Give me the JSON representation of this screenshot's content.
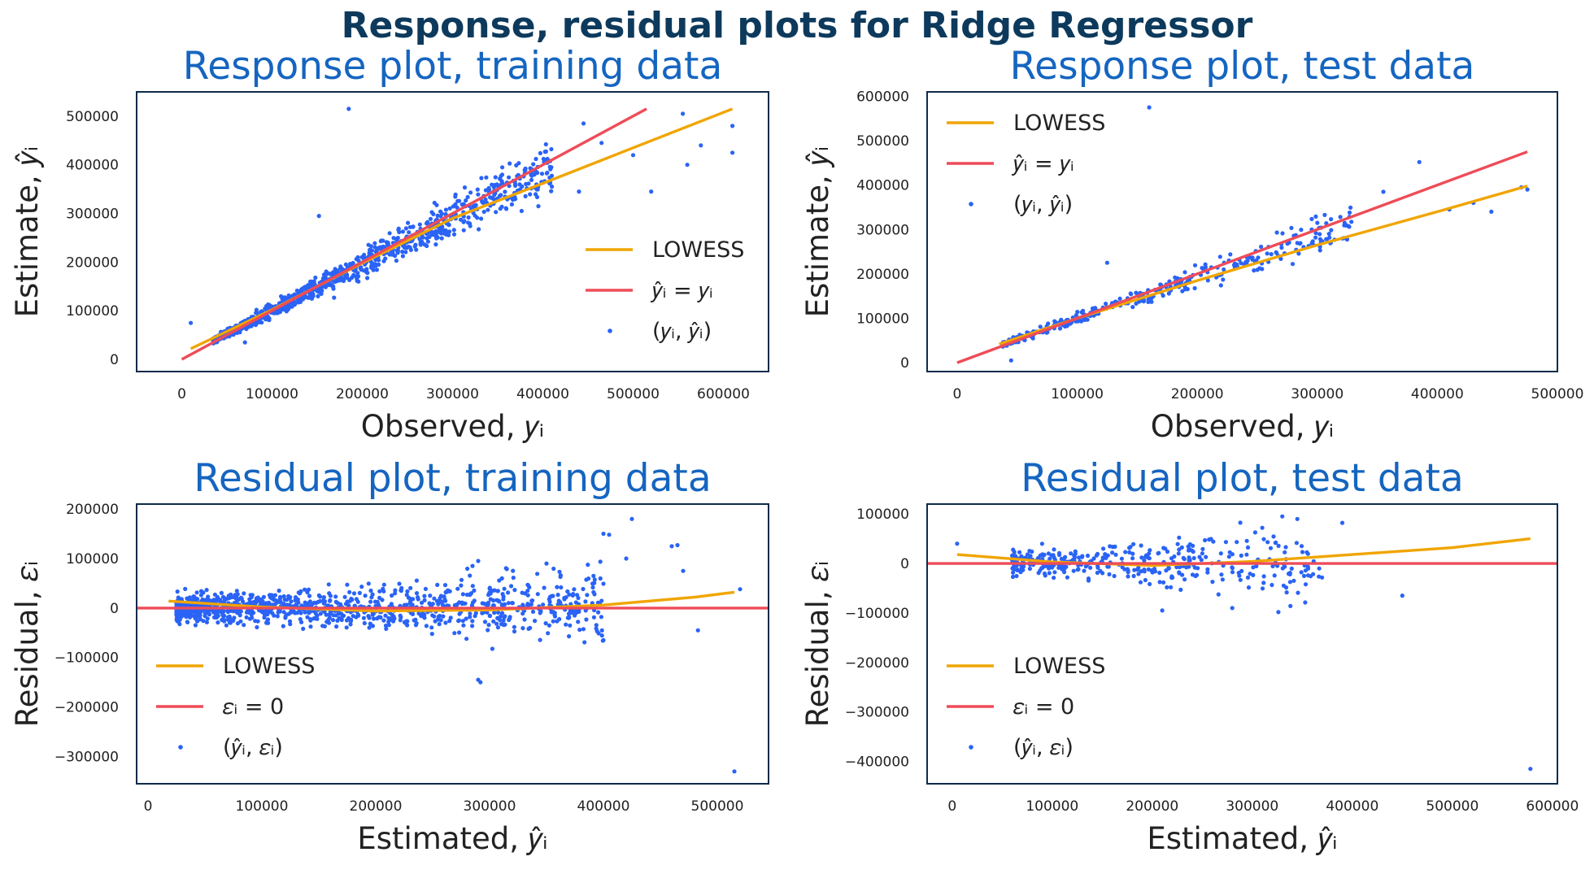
{
  "figure": {
    "title": "Response, residual plots for Ridge Regressor",
    "colors": {
      "frame": "#0d2b4a",
      "title": "#0d3a5c",
      "subtitle": "#1565c0",
      "points": "#2a63f5",
      "lowess": "#f0a500",
      "identity": "#ee4c58",
      "text": "#222222"
    }
  },
  "chart_data": [
    {
      "type": "scatter",
      "title": "Response plot, training data",
      "xlabel": "Observed, 𝑦ᵢ",
      "ylabel": "Estimate, 𝑦̂ᵢ",
      "xlim": [
        -50000,
        650000
      ],
      "ylim": [
        -25000,
        550000
      ],
      "xticks": [
        0,
        100000,
        200000,
        300000,
        400000,
        500000,
        600000
      ],
      "yticks": [
        0,
        100000,
        200000,
        300000,
        400000,
        500000
      ],
      "legend": {
        "placement": "lower-right",
        "entries": [
          "LOWESS",
          "𝑦̂ᵢ = 𝑦ᵢ",
          "(𝑦ᵢ, 𝑦̂ᵢ)"
        ]
      },
      "series": [
        {
          "kind": "line",
          "role": "lowess",
          "x": [
            10000,
            100000,
            200000,
            300000,
            400000,
            500000,
            610000
          ],
          "y": [
            22000,
            102000,
            198000,
            290000,
            362000,
            435000,
            515000
          ]
        },
        {
          "kind": "line",
          "role": "identity",
          "x": [
            0,
            515000
          ],
          "y": [
            0,
            515000
          ]
        },
        {
          "kind": "scatter",
          "role": "points",
          "cluster": {
            "n": 1100,
            "x_range": [
              35000,
              410000
            ],
            "slope": 0.96,
            "intercept": 5000,
            "noise_fraction": 0.11
          },
          "extra_points": [
            [
              185000,
              515000
            ],
            [
              555000,
              505000
            ],
            [
              610000,
              480000
            ],
            [
              575000,
              440000
            ],
            [
              500000,
              420000
            ],
            [
              560000,
              400000
            ],
            [
              610000,
              425000
            ],
            [
              445000,
              485000
            ],
            [
              465000,
              445000
            ],
            [
              152000,
              295000
            ],
            [
              520000,
              345000
            ],
            [
              440000,
              345000
            ],
            [
              395000,
              315000
            ],
            [
              10000,
              75000
            ],
            [
              70000,
              35000
            ]
          ]
        }
      ]
    },
    {
      "type": "scatter",
      "title": "Response plot, test data",
      "xlabel": "Observed, 𝑦ᵢ",
      "ylabel": "Estimate, 𝑦̂ᵢ",
      "xlim": [
        -25000,
        500000
      ],
      "ylim": [
        -20000,
        610000
      ],
      "xticks": [
        0,
        100000,
        200000,
        300000,
        400000,
        500000
      ],
      "yticks": [
        0,
        100000,
        200000,
        300000,
        400000,
        500000,
        600000
      ],
      "legend": {
        "placement": "upper-left",
        "entries": [
          "LOWESS",
          "𝑦̂ᵢ = 𝑦ᵢ",
          "(𝑦ᵢ, 𝑦̂ᵢ)"
        ]
      },
      "series": [
        {
          "kind": "line",
          "role": "lowess",
          "x": [
            35000,
            100000,
            200000,
            300000,
            400000,
            475000
          ],
          "y": [
            42000,
            100000,
            185000,
            265000,
            340000,
            398000
          ]
        },
        {
          "kind": "line",
          "role": "identity",
          "x": [
            0,
            475000
          ],
          "y": [
            0,
            475000
          ]
        },
        {
          "kind": "scatter",
          "role": "points",
          "cluster": {
            "n": 380,
            "x_range": [
              38000,
              330000
            ],
            "slope": 0.93,
            "intercept": 6000,
            "noise_fraction": 0.1
          },
          "extra_points": [
            [
              160000,
              575000
            ],
            [
              385000,
              452000
            ],
            [
              475000,
              390000
            ],
            [
              470000,
              395000
            ],
            [
              355000,
              385000
            ],
            [
              430000,
              360000
            ],
            [
              410000,
              345000
            ],
            [
              445000,
              340000
            ],
            [
              300000,
              315000
            ],
            [
              45000,
              5000
            ],
            [
              125000,
              225000
            ]
          ]
        }
      ]
    },
    {
      "type": "scatter",
      "title": "Residual plot, training data",
      "xlabel": "Estimated, 𝑦̂ᵢ",
      "ylabel": "Residual, 𝜀ᵢ",
      "xlim": [
        -10000,
        545000
      ],
      "ylim": [
        -355000,
        210000
      ],
      "xticks": [
        0,
        100000,
        200000,
        300000,
        400000,
        500000
      ],
      "yticks": [
        200000,
        100000,
        0,
        -100000,
        -200000,
        -300000
      ],
      "legend": {
        "placement": "lower-left",
        "entries": [
          "LOWESS",
          "𝜀ᵢ = 0",
          "(𝑦̂ᵢ, 𝜀ᵢ)"
        ]
      },
      "series": [
        {
          "kind": "line",
          "role": "lowess",
          "x": [
            18000,
            100000,
            200000,
            300000,
            400000,
            480000,
            515000
          ],
          "y": [
            14000,
            2000,
            -6000,
            -4000,
            6000,
            22000,
            32000
          ]
        },
        {
          "kind": "line",
          "role": "identity",
          "x": [
            -10000,
            545000
          ],
          "y": [
            0,
            0
          ]
        },
        {
          "kind": "scatter",
          "role": "points",
          "cluster": {
            "n": 1100,
            "x_range": [
              25000,
              400000
            ],
            "center": 0,
            "spread": 22000,
            "spread_growth": 0.12
          },
          "extra_points": [
            [
              515000,
              -330000
            ],
            [
              290000,
              -145000
            ],
            [
              292000,
              -150000
            ],
            [
              425000,
              180000
            ],
            [
              400000,
              150000
            ],
            [
              405000,
              148000
            ],
            [
              460000,
              125000
            ],
            [
              465000,
              127000
            ],
            [
              420000,
              100000
            ],
            [
              470000,
              75000
            ],
            [
              520000,
              38000
            ],
            [
              483000,
              -45000
            ],
            [
              350000,
              90000
            ],
            [
              400000,
              -65000
            ],
            [
              290000,
              95000
            ],
            [
              285000,
              85000
            ]
          ]
        }
      ]
    },
    {
      "type": "scatter",
      "title": "Residual plot, test data",
      "xlabel": "Estimated, 𝑦̂ᵢ",
      "ylabel": "Residual, 𝜀ᵢ",
      "xlim": [
        -25000,
        605000
      ],
      "ylim": [
        -445000,
        120000
      ],
      "xticks": [
        0,
        100000,
        200000,
        300000,
        400000,
        500000,
        600000
      ],
      "yticks": [
        100000,
        0,
        -100000,
        -200000,
        -300000,
        -400000
      ],
      "legend": {
        "placement": "lower-left",
        "entries": [
          "LOWESS",
          "𝜀ᵢ = 0",
          "(𝑦̂ᵢ, 𝜀ᵢ)"
        ]
      },
      "series": [
        {
          "kind": "line",
          "role": "lowess",
          "x": [
            5000,
            100000,
            200000,
            300000,
            400000,
            500000,
            578000
          ],
          "y": [
            18000,
            3000,
            -4000,
            4000,
            18000,
            32000,
            50000
          ]
        },
        {
          "kind": "line",
          "role": "identity",
          "x": [
            -25000,
            605000
          ],
          "y": [
            0,
            0
          ]
        },
        {
          "kind": "scatter",
          "role": "points",
          "cluster": {
            "n": 380,
            "x_range": [
              60000,
              370000
            ],
            "center": 0,
            "spread": 18000,
            "spread_growth": 0.2
          },
          "extra_points": [
            [
              578000,
              -415000
            ],
            [
              450000,
              -65000
            ],
            [
              280000,
              -90000
            ],
            [
              5000,
              40000
            ],
            [
              330000,
              95000
            ],
            [
              345000,
              90000
            ],
            [
              390000,
              82000
            ],
            [
              310000,
              72000
            ],
            [
              210000,
              -95000
            ]
          ]
        }
      ]
    }
  ]
}
